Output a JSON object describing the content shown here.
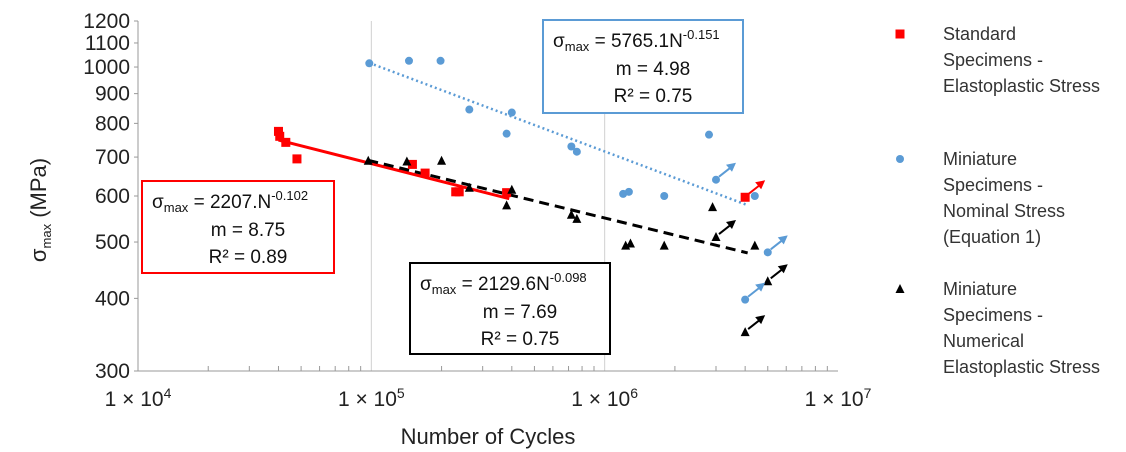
{
  "chart_data": {
    "type": "scatter",
    "xscale": "log",
    "yscale": "log",
    "xlim": [
      10000,
      10000000
    ],
    "ylim": [
      300,
      1200
    ],
    "xlabel": "Number of Cycles",
    "ylabel": "σmax (MPa)",
    "ylabel_main": "σ",
    "ylabel_sub": "max",
    "ylabel_rest": " (MPa)",
    "x_tick_labels": [
      "1 × 10^4",
      "1 × 10^5",
      "1 × 10^6",
      "1 × 10^7"
    ],
    "y_ticks": [
      300,
      400,
      500,
      600,
      700,
      800,
      900,
      1000,
      1100,
      1200
    ],
    "grid": "vertical major gridlines",
    "legend_position": "right",
    "series": [
      {
        "name_lines": [
          "Standard",
          "Specimens -",
          "Elastoplastic Stress"
        ],
        "marker": "square",
        "color": "#ff0000",
        "points": [
          [
            40000,
            775
          ],
          [
            40500,
            760
          ],
          [
            43000,
            742
          ],
          [
            48000,
            695
          ],
          [
            150000,
            680
          ],
          [
            170000,
            657
          ],
          [
            230000,
            610
          ],
          [
            238000,
            610
          ],
          [
            380000,
            608
          ]
        ],
        "runouts": [
          [
            4000000,
            597
          ]
        ],
        "trend": {
          "a": 2207,
          "b": -0.102,
          "x_range": [
            40000,
            390000
          ],
          "style": "solid",
          "width": 3
        },
        "equation": {
          "sigma": "σ",
          "sub": "max",
          "lhs_rest": " = 2207.N",
          "exponent": "-0.102",
          "m": "m = 8.75",
          "r2": "R² = 0.89"
        },
        "box_color": "#ff0000"
      },
      {
        "name_lines": [
          "Miniature",
          "Specimens -",
          "Nominal Stress",
          "(Equation 1)"
        ],
        "marker": "circle",
        "color": "#5b9bd5",
        "points": [
          [
            98000,
            1015
          ],
          [
            145000,
            1025
          ],
          [
            198000,
            1025
          ],
          [
            263000,
            845
          ],
          [
            380000,
            768
          ],
          [
            400000,
            835
          ],
          [
            720000,
            730
          ],
          [
            760000,
            715
          ],
          [
            1200000,
            605
          ],
          [
            1270000,
            610
          ],
          [
            1800000,
            600
          ],
          [
            2800000,
            765
          ],
          [
            4400000,
            600
          ]
        ],
        "runouts": [
          [
            3000000,
            640
          ],
          [
            5000000,
            480
          ],
          [
            4000000,
            398
          ]
        ],
        "trend": {
          "a": 5765.1,
          "b": -0.151,
          "x_range": [
            98000,
            4100000
          ],
          "style": "dotted",
          "width": 2.5
        },
        "equation": {
          "sigma": "σ",
          "sub": "max",
          "lhs_rest": " = 5765.1N",
          "exponent": "-0.151",
          "m": "m = 4.98",
          "r2": "R² = 0.75"
        },
        "box_color": "#5b9bd5"
      },
      {
        "name_lines": [
          "Miniature",
          "Specimens -",
          "Numerical",
          "Elastoplastic Stress"
        ],
        "marker": "triangle",
        "color": "#000000",
        "points": [
          [
            97000,
            690
          ],
          [
            142000,
            688
          ],
          [
            200000,
            690
          ],
          [
            263000,
            620
          ],
          [
            380000,
            578
          ],
          [
            400000,
            615
          ],
          [
            720000,
            557
          ],
          [
            760000,
            548
          ],
          [
            1230000,
            493
          ],
          [
            1290000,
            497
          ],
          [
            1800000,
            493
          ],
          [
            2900000,
            574
          ],
          [
            4400000,
            493
          ]
        ],
        "runouts": [
          [
            3000000,
            510
          ],
          [
            5000000,
            428
          ],
          [
            4000000,
            350
          ]
        ],
        "trend": {
          "a": 2129.6,
          "b": -0.098,
          "x_range": [
            97000,
            4100000
          ],
          "style": "dashed",
          "width": 3
        },
        "equation": {
          "sigma": "σ",
          "sub": "max",
          "lhs_rest": " = 2129.6N",
          "exponent": "-0.098",
          "m": "m = 7.69",
          "r2": "R² = 0.75"
        },
        "box_color": "#000000"
      }
    ]
  }
}
